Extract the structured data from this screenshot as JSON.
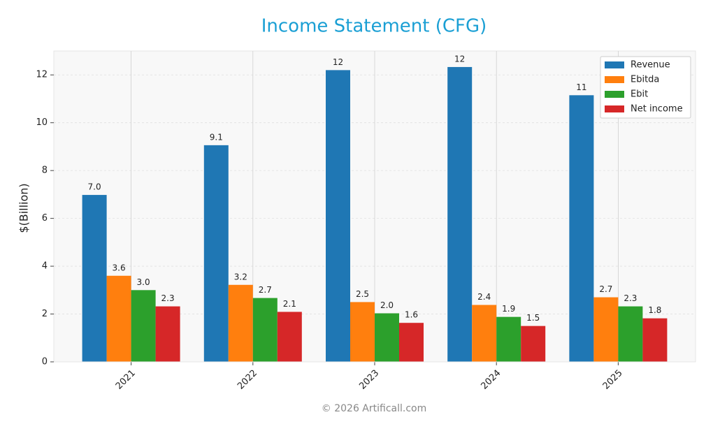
{
  "chart_data": {
    "type": "bar",
    "title": "Income Statement (CFG)",
    "ylabel": "$(Billion)",
    "categories": [
      "2021",
      "2022",
      "2023",
      "2024",
      "2025"
    ],
    "series": [
      {
        "name": "Revenue",
        "color": "#1f77b4",
        "values": [
          6.98,
          9.06,
          12.2,
          12.33,
          11.15
        ],
        "value_labels": [
          "7.0",
          "9.1",
          "12",
          "12",
          "11"
        ]
      },
      {
        "name": "Ebitda",
        "color": "#ff7f0e",
        "values": [
          3.6,
          3.22,
          2.5,
          2.38,
          2.7
        ],
        "value_labels": [
          "3.6",
          "3.2",
          "2.5",
          "2.4",
          "2.7"
        ]
      },
      {
        "name": "Ebit",
        "color": "#2ca02c",
        "values": [
          3.0,
          2.67,
          2.03,
          1.88,
          2.32
        ],
        "value_labels": [
          "3.0",
          "2.7",
          "2.0",
          "1.9",
          "2.3"
        ]
      },
      {
        "name": "Net income",
        "color": "#d62728",
        "values": [
          2.32,
          2.09,
          1.63,
          1.5,
          1.82
        ],
        "value_labels": [
          "2.3",
          "2.1",
          "1.6",
          "1.5",
          "1.8"
        ]
      }
    ],
    "ylim": [
      0,
      13.0
    ],
    "yticks": [
      0,
      2,
      4,
      6,
      8,
      10,
      12
    ],
    "grid": true,
    "legend": "upper right"
  },
  "footer": "© 2026 Artificall.com"
}
